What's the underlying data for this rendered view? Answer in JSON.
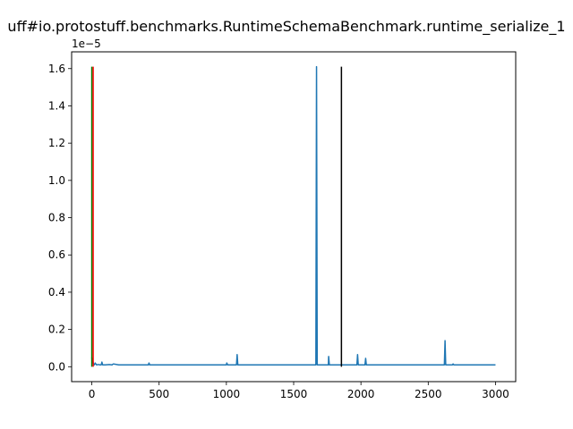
{
  "chart_data": {
    "type": "line",
    "title": "uff#io.protostuff.benchmarks.RuntimeSchemaBenchmark.runtime_serialize_1",
    "xlabel": "",
    "ylabel": "",
    "y_offset_label": "1e−5",
    "xlim": [
      -150,
      3150
    ],
    "ylim": [
      -0.08,
      1.69
    ],
    "y_scale_exponent": -5,
    "grid": false,
    "x_ticks": [
      {
        "value": 0,
        "label": "0"
      },
      {
        "value": 500,
        "label": "500"
      },
      {
        "value": 1000,
        "label": "1000"
      },
      {
        "value": 1500,
        "label": "1500"
      },
      {
        "value": 2000,
        "label": "2000"
      },
      {
        "value": 2500,
        "label": "2500"
      },
      {
        "value": 3000,
        "label": "3000"
      }
    ],
    "y_ticks": [
      {
        "value": 0.0,
        "label": "0.0"
      },
      {
        "value": 0.2,
        "label": "0.2"
      },
      {
        "value": 0.4,
        "label": "0.4"
      },
      {
        "value": 0.6,
        "label": "0.6"
      },
      {
        "value": 0.8,
        "label": "0.8"
      },
      {
        "value": 1.0,
        "label": "1.0"
      },
      {
        "value": 1.2,
        "label": "1.2"
      },
      {
        "value": 1.4,
        "label": "1.4"
      },
      {
        "value": 1.6,
        "label": "1.6"
      }
    ],
    "series": [
      {
        "color": "#1f77b4",
        "x": [
          0,
          3,
          5,
          8,
          12,
          18,
          25,
          35,
          50,
          60,
          70,
          75,
          80,
          100,
          130,
          150,
          160,
          200,
          250,
          300,
          350,
          400,
          420,
          425,
          430,
          500,
          600,
          700,
          800,
          900,
          950,
          1000,
          1003,
          1010,
          1050,
          1075,
          1080,
          1085,
          1100,
          1200,
          1300,
          1400,
          1500,
          1600,
          1660,
          1665,
          1670,
          1675,
          1680,
          1700,
          1750,
          1758,
          1760,
          1765,
          1800,
          1900,
          1970,
          1975,
          1980,
          2000,
          2030,
          2035,
          2040,
          2100,
          2200,
          2300,
          2400,
          2500,
          2600,
          2620,
          2625,
          2630,
          2640,
          2680,
          2685,
          2690,
          2700,
          2800,
          2900,
          3000
        ],
        "values": [
          0.05,
          0.03,
          0.02,
          0.03,
          0.015,
          0.01,
          0.02,
          0.01,
          0.012,
          0.01,
          0.01,
          0.025,
          0.01,
          0.01,
          0.012,
          0.01,
          0.015,
          0.01,
          0.01,
          0.01,
          0.01,
          0.01,
          0.01,
          0.02,
          0.01,
          0.01,
          0.01,
          0.01,
          0.01,
          0.01,
          0.01,
          0.01,
          0.02,
          0.01,
          0.01,
          0.01,
          0.065,
          0.01,
          0.01,
          0.01,
          0.01,
          0.01,
          0.01,
          0.01,
          0.01,
          0.01,
          1.61,
          0.01,
          0.01,
          0.01,
          0.01,
          0.01,
          0.055,
          0.01,
          0.01,
          0.01,
          0.01,
          0.065,
          0.01,
          0.01,
          0.01,
          0.045,
          0.01,
          0.01,
          0.01,
          0.01,
          0.01,
          0.01,
          0.01,
          0.01,
          0.14,
          0.01,
          0.01,
          0.01,
          0.015,
          0.01,
          0.01,
          0.01,
          0.01,
          0.01
        ]
      }
    ],
    "vlines": [
      {
        "x": 0,
        "ymin": 0.0,
        "ymax": 1.61,
        "color": "#008000"
      },
      {
        "x": 10,
        "ymin": 0.0,
        "ymax": 1.61,
        "color": "#ff0000"
      },
      {
        "x": 1855,
        "ymin": 0.0,
        "ymax": 1.61,
        "color": "#000000"
      }
    ]
  }
}
